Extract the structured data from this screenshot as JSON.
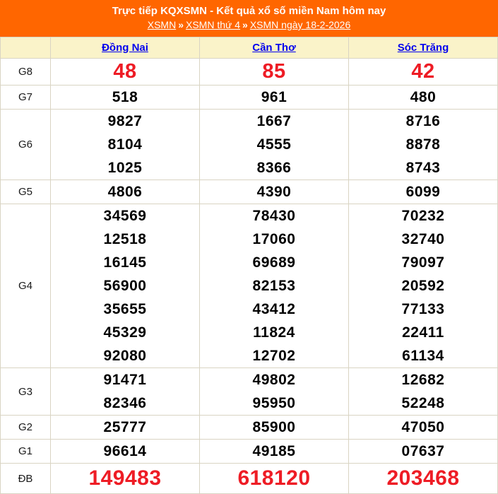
{
  "header": {
    "title": "Trực tiếp KQXSMN - Kết quả xổ số miền Nam hôm nay",
    "separator": "»",
    "breadcrumb": [
      {
        "label": "XSMN"
      },
      {
        "label": "XSMN thứ 4"
      },
      {
        "label": "XSMN ngày 18-2-2026"
      }
    ],
    "bg_color": "#FF6600"
  },
  "table": {
    "columns": [
      {
        "label": "Đồng Nai"
      },
      {
        "label": "Cần Thơ"
      },
      {
        "label": "Sóc Trăng"
      }
    ],
    "rows": [
      {
        "label": "G8",
        "style": "red-large",
        "values": [
          [
            "48"
          ],
          [
            "85"
          ],
          [
            "42"
          ]
        ]
      },
      {
        "label": "G7",
        "style": "normal",
        "values": [
          [
            "518"
          ],
          [
            "961"
          ],
          [
            "480"
          ]
        ]
      },
      {
        "label": "G6",
        "style": "normal",
        "values": [
          [
            "9827",
            "8104",
            "1025"
          ],
          [
            "1667",
            "4555",
            "8366"
          ],
          [
            "8716",
            "8878",
            "8743"
          ]
        ]
      },
      {
        "label": "G5",
        "style": "normal",
        "values": [
          [
            "4806"
          ],
          [
            "4390"
          ],
          [
            "6099"
          ]
        ]
      },
      {
        "label": "G4",
        "style": "normal",
        "values": [
          [
            "34569",
            "12518",
            "16145",
            "56900",
            "35655",
            "45329",
            "92080"
          ],
          [
            "78430",
            "17060",
            "69689",
            "82153",
            "43412",
            "11824",
            "12702"
          ],
          [
            "70232",
            "32740",
            "79097",
            "20592",
            "77133",
            "22411",
            "61134"
          ]
        ]
      },
      {
        "label": "G3",
        "style": "normal",
        "values": [
          [
            "91471",
            "82346"
          ],
          [
            "49802",
            "95950"
          ],
          [
            "12682",
            "52248"
          ]
        ]
      },
      {
        "label": "G2",
        "style": "normal",
        "values": [
          [
            "25777"
          ],
          [
            "85900"
          ],
          [
            "47050"
          ]
        ]
      },
      {
        "label": "G1",
        "style": "normal",
        "values": [
          [
            "96614"
          ],
          [
            "49185"
          ],
          [
            "07637"
          ]
        ]
      },
      {
        "label": "ĐB",
        "style": "red-large",
        "values": [
          [
            "149483"
          ],
          [
            "618120"
          ],
          [
            "203468"
          ]
        ]
      }
    ],
    "colors": {
      "header_row_bg": "#FAF3C9",
      "link_blue": "#0000EE",
      "result_red": "#EE1C25",
      "border": "#D9D4C3"
    }
  }
}
